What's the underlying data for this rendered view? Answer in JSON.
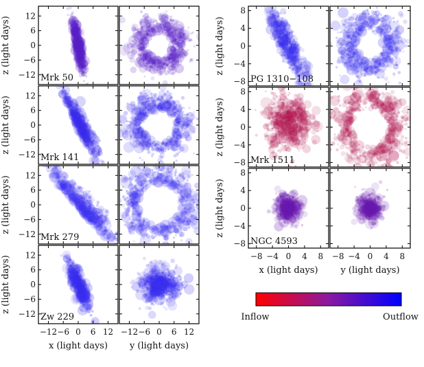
{
  "colorbar": {
    "left_label": "Inflow",
    "right_label": "Outflow",
    "colors": [
      "#ff0000",
      "#0000ff"
    ]
  },
  "chart_data": [
    {
      "type": "scatter",
      "group": "left",
      "xlabels": [
        "x (light days)",
        "y (light days)"
      ],
      "ylabel": "z (light days)",
      "xlim": [
        -16,
        16
      ],
      "ylim": [
        -16,
        16
      ],
      "xticks": [
        -12,
        -6,
        0,
        6,
        12
      ],
      "yticks": [
        -12,
        -6,
        0,
        6,
        12
      ],
      "rows": [
        {
          "name": "Mrk 50",
          "color": "#5a22c8",
          "left_shape": "band",
          "slope": -5.0,
          "width": 1.6,
          "right_shape": "ring",
          "ring_radius": 5,
          "spread": 10
        },
        {
          "name": "Mrk 141",
          "color": "#3b2dec",
          "left_shape": "wedge",
          "slope": -2.2,
          "width": 3.5,
          "right_shape": "ring",
          "ring_radius": 6,
          "spread": 11
        },
        {
          "name": "Mrk 279",
          "color": "#3f34f2",
          "left_shape": "wedge",
          "slope": -1.2,
          "width": 6,
          "right_shape": "ring",
          "ring_radius": 8,
          "spread": 12
        },
        {
          "name": "Zw 229",
          "color": "#3a2ef0",
          "left_shape": "band",
          "slope": -2.8,
          "width": 3,
          "right_shape": "blob",
          "ring_radius": 3,
          "spread": 9
        }
      ]
    },
    {
      "type": "scatter",
      "group": "right",
      "xlabels": [
        "x (light days)",
        "y (light days)"
      ],
      "ylabel": "z (light days)",
      "xlim": [
        -10,
        10
      ],
      "ylim": [
        -9,
        9
      ],
      "xticks": [
        -8,
        -4,
        0,
        4,
        8
      ],
      "yticks": [
        -8,
        -4,
        0,
        4,
        8
      ],
      "rows": [
        {
          "name": "PG 1310−108",
          "color": "#3b30ee",
          "left_shape": "band",
          "slope": -2.0,
          "width": 3,
          "right_shape": "ring",
          "ring_radius": 3,
          "spread": 7
        },
        {
          "name": "Mrk 1511",
          "color": "#b0154e",
          "left_shape": "cloud",
          "slope": -1.5,
          "width": 5,
          "right_shape": "ring",
          "ring_radius": 4,
          "spread": 8
        },
        {
          "name": "NGC 4593",
          "color": "#6a1ab0",
          "left_shape": "blob",
          "slope": 0,
          "width": 3,
          "right_shape": "blob",
          "ring_radius": 0,
          "spread": 4
        }
      ]
    }
  ]
}
